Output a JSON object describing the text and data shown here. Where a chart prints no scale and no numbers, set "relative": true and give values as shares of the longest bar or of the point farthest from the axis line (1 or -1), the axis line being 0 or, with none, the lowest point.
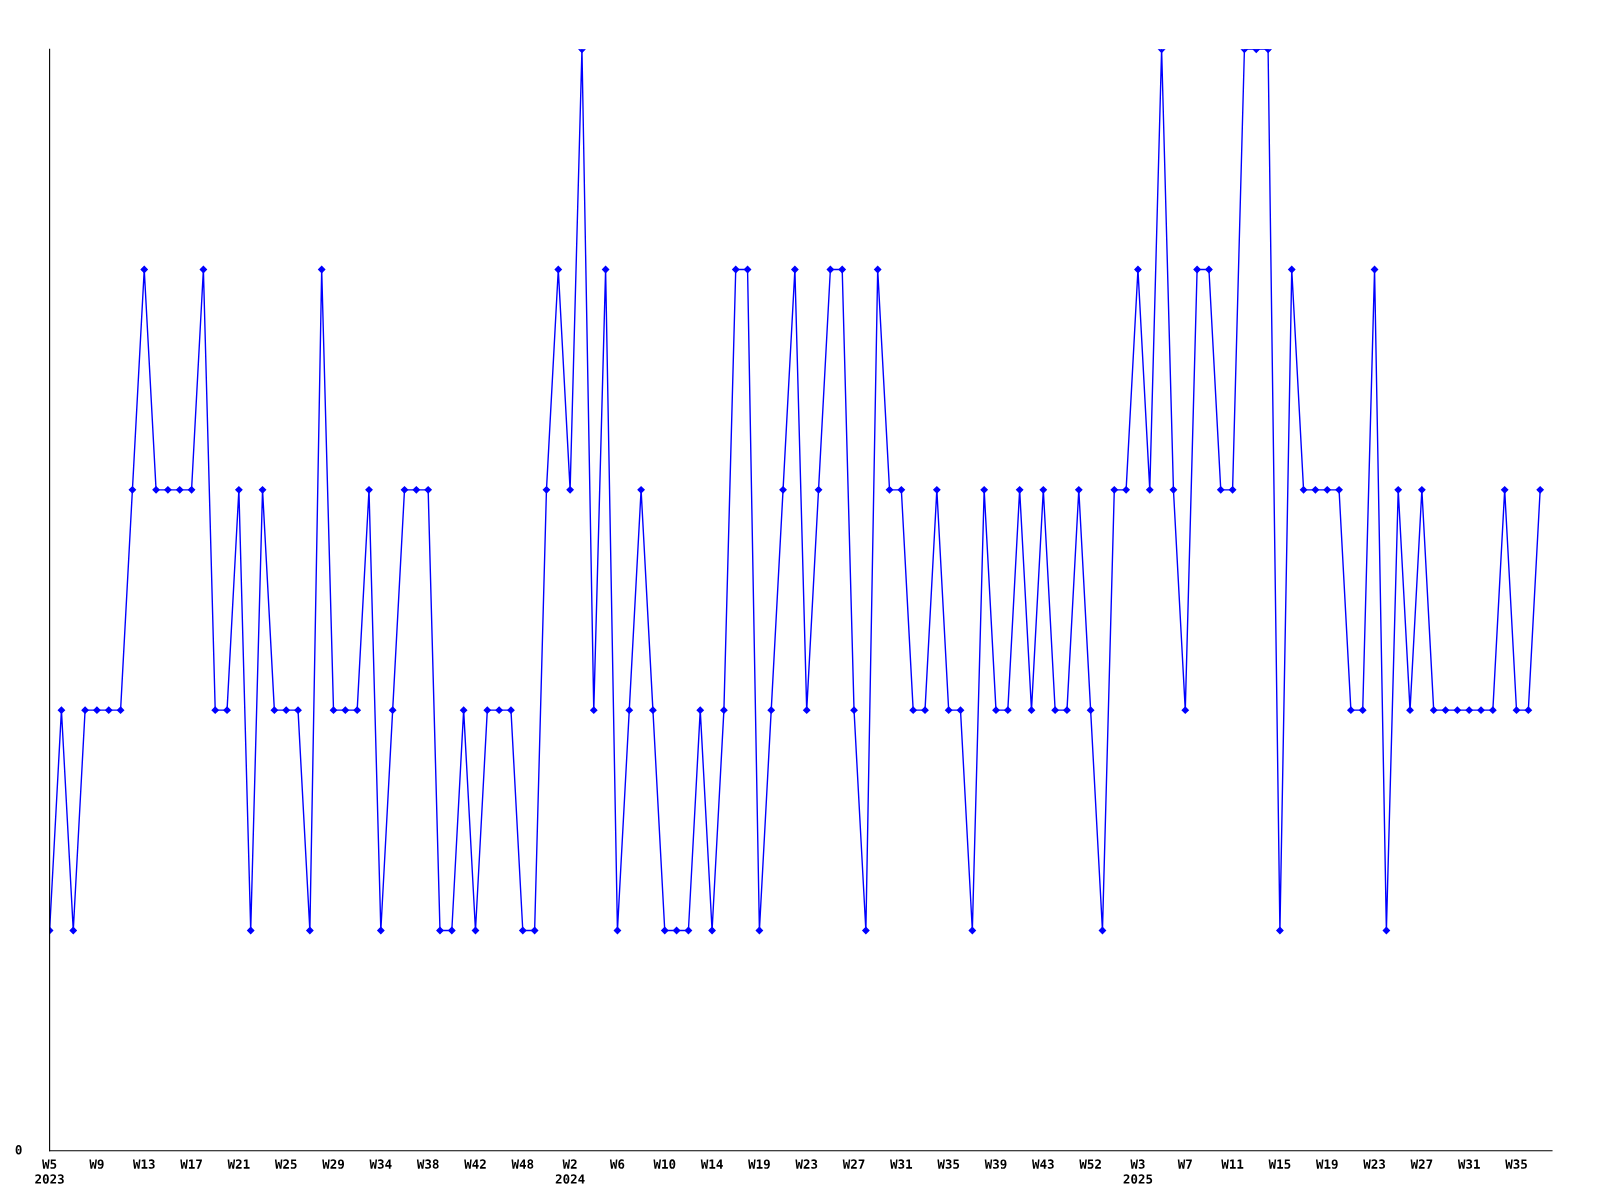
{
  "chart_data": {
    "type": "line",
    "relative": true,
    "marker": "diamond",
    "line_style": "solid",
    "grid": false,
    "annotations": [
      "0"
    ],
    "categories": [
      "W5\n2023",
      null,
      null,
      null,
      "W9",
      null,
      null,
      null,
      "W13",
      null,
      null,
      null,
      "W17",
      null,
      null,
      null,
      "W21",
      null,
      null,
      null,
      "W25",
      null,
      null,
      null,
      "W29",
      null,
      null,
      null,
      "W34",
      null,
      null,
      null,
      "W38",
      null,
      null,
      null,
      "W42",
      null,
      null,
      null,
      "W48",
      null,
      null,
      null,
      "W2\n2024",
      null,
      null,
      null,
      "W6",
      null,
      null,
      null,
      "W10",
      null,
      null,
      null,
      "W14",
      null,
      null,
      null,
      "W19",
      null,
      null,
      null,
      "W23",
      null,
      null,
      null,
      "W27",
      null,
      null,
      null,
      "W31",
      null,
      null,
      null,
      "W35",
      null,
      null,
      null,
      "W39",
      null,
      null,
      null,
      "W43",
      null,
      null,
      null,
      "W52",
      null,
      null,
      null,
      "W3\n2025",
      null,
      null,
      null,
      "W7",
      null,
      null,
      null,
      "W11",
      null,
      null,
      null,
      "W15",
      null,
      null,
      null,
      "W19",
      null,
      null,
      null,
      "W23",
      null,
      null,
      null,
      "W27",
      null,
      null,
      null,
      "W31",
      null,
      null,
      null,
      "W35",
      null,
      null
    ],
    "series": [
      {
        "color": "#0000ff",
        "values": [
          0.2,
          0.4,
          0.2,
          0.4,
          0.4,
          0.4,
          0.4,
          0.6,
          0.8,
          0.6,
          0.6,
          0.6,
          0.6,
          0.8,
          0.4,
          0.4,
          0.6,
          0.2,
          0.6,
          0.4,
          0.4,
          0.4,
          0.2,
          0.8,
          0.4,
          0.4,
          0.4,
          0.6,
          0.2,
          0.4,
          0.6,
          0.6,
          0.6,
          0.2,
          0.2,
          0.4,
          0.2,
          0.4,
          0.4,
          0.4,
          0.2,
          0.2,
          0.6,
          0.8,
          0.6,
          1,
          0.4,
          0.8,
          0.2,
          0.4,
          0.6,
          0.4,
          0.2,
          0.2,
          0.2,
          0.4,
          0.2,
          0.4,
          0.8,
          0.8,
          0.2,
          0.4,
          0.6,
          0.8,
          0.4,
          0.6,
          0.8,
          0.8,
          0.4,
          0.2,
          0.8,
          0.6,
          0.6,
          0.4,
          0.4,
          0.6,
          0.4,
          0.4,
          0.2,
          0.6,
          0.4,
          0.4,
          0.6,
          0.4,
          0.6,
          0.4,
          0.4,
          0.6,
          0.4,
          0.2,
          0.6,
          0.6,
          0.8,
          0.6,
          1,
          0.6,
          0.4,
          0.8,
          0.8,
          0.6,
          0.6,
          1,
          1,
          1,
          0.2,
          0.8,
          0.6,
          0.6,
          0.6,
          0.6,
          0.4,
          0.4,
          0.8,
          0.2,
          0.6,
          0.4,
          0.6,
          0.4,
          0.4,
          0.4,
          0.4,
          0.4,
          0.4,
          0.6,
          0.4,
          0.4,
          0.6
        ]
      }
    ]
  }
}
